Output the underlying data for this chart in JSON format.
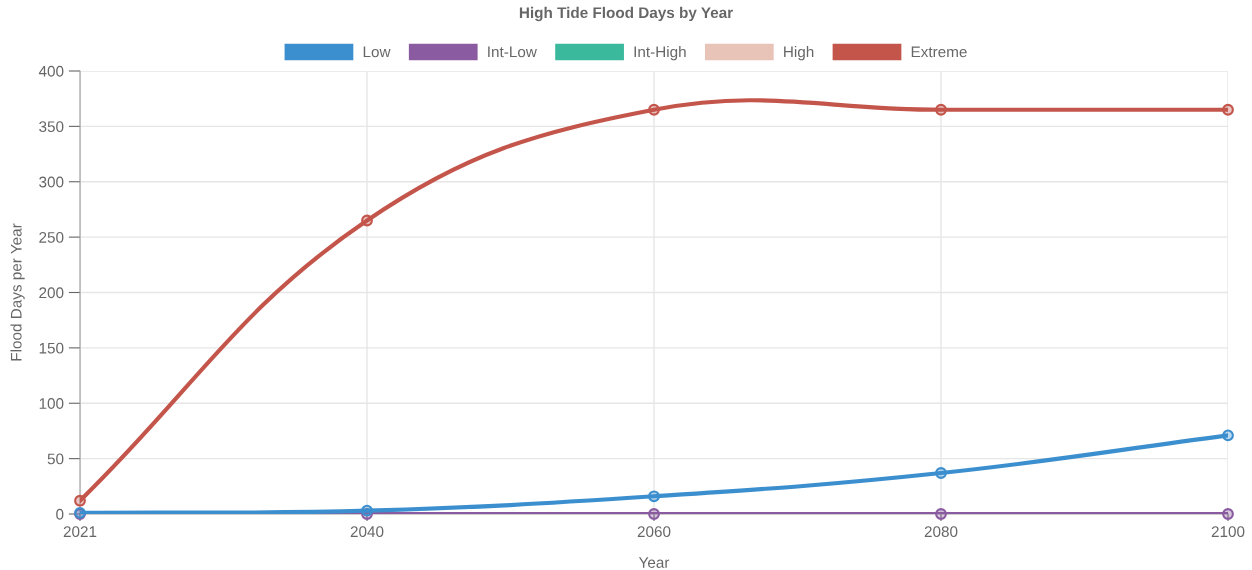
{
  "chart_data": {
    "type": "line",
    "title": "High Tide Flood Days by Year",
    "xlabel": "Year",
    "ylabel": "Flood Days per Year",
    "categories": [
      "2021",
      "2040",
      "2060",
      "2080",
      "2100"
    ],
    "series": [
      {
        "name": "Low",
        "color": "#3c8fcf",
        "values": [
          1,
          3,
          16,
          37,
          71
        ]
      },
      {
        "name": "Int-Low",
        "color": "#8a5ba0",
        "values": [
          0,
          0,
          0,
          0,
          0
        ]
      },
      {
        "name": "Int-High",
        "color": "#3bb99c",
        "values": [
          null,
          null,
          null,
          null,
          null
        ]
      },
      {
        "name": "High",
        "color": "#e8c3b8",
        "values": [
          null,
          null,
          null,
          null,
          null
        ]
      },
      {
        "name": "Extreme",
        "color": "#c4554b",
        "values": [
          12,
          265,
          365,
          365,
          365
        ]
      }
    ],
    "ylim": [
      0,
      400
    ],
    "yticks": [
      0,
      50,
      100,
      150,
      200,
      250,
      300,
      350,
      400
    ],
    "grid": true,
    "legend": "top",
    "marker": "circle",
    "line_style": "solid"
  }
}
